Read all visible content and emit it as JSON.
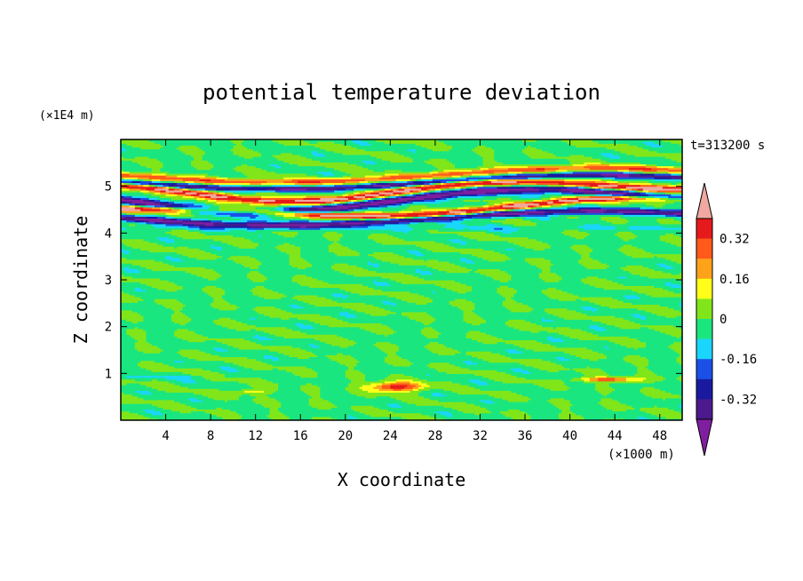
{
  "chart_data": {
    "type": "heatmap",
    "title": "potential temperature deviation",
    "xlabel": "X coordinate",
    "ylabel": "Z coordinate",
    "x_unit": "(×1000 m)",
    "y_unit": "(×1E4 m)",
    "time_label": "t=313200 s",
    "xlim": [
      0,
      50
    ],
    "ylim": [
      0,
      6
    ],
    "xticks": [
      4,
      8,
      12,
      16,
      20,
      24,
      28,
      32,
      36,
      40,
      44,
      48
    ],
    "yticks": [
      1,
      2,
      3,
      4,
      5
    ],
    "colorbar": {
      "levels": [
        -0.48,
        -0.4,
        -0.32,
        -0.24,
        -0.16,
        -0.08,
        0,
        0.08,
        0.16,
        0.24,
        0.32,
        0.4,
        0.48
      ],
      "colors": [
        "#7f1f9f",
        "#4b1a8c",
        "#1a1aa0",
        "#1a50e6",
        "#1ad6ff",
        "#1ae680",
        "#80e61a",
        "#ffff1a",
        "#ffa21a",
        "#ff5a1a",
        "#e61a1a",
        "#f0a8a0"
      ],
      "labels": [
        "0.32",
        "0.16",
        "0",
        "-0.16",
        "-0.32"
      ],
      "label_values": [
        0.32,
        0.16,
        0,
        -0.16,
        -0.32
      ]
    },
    "grid": false
  }
}
